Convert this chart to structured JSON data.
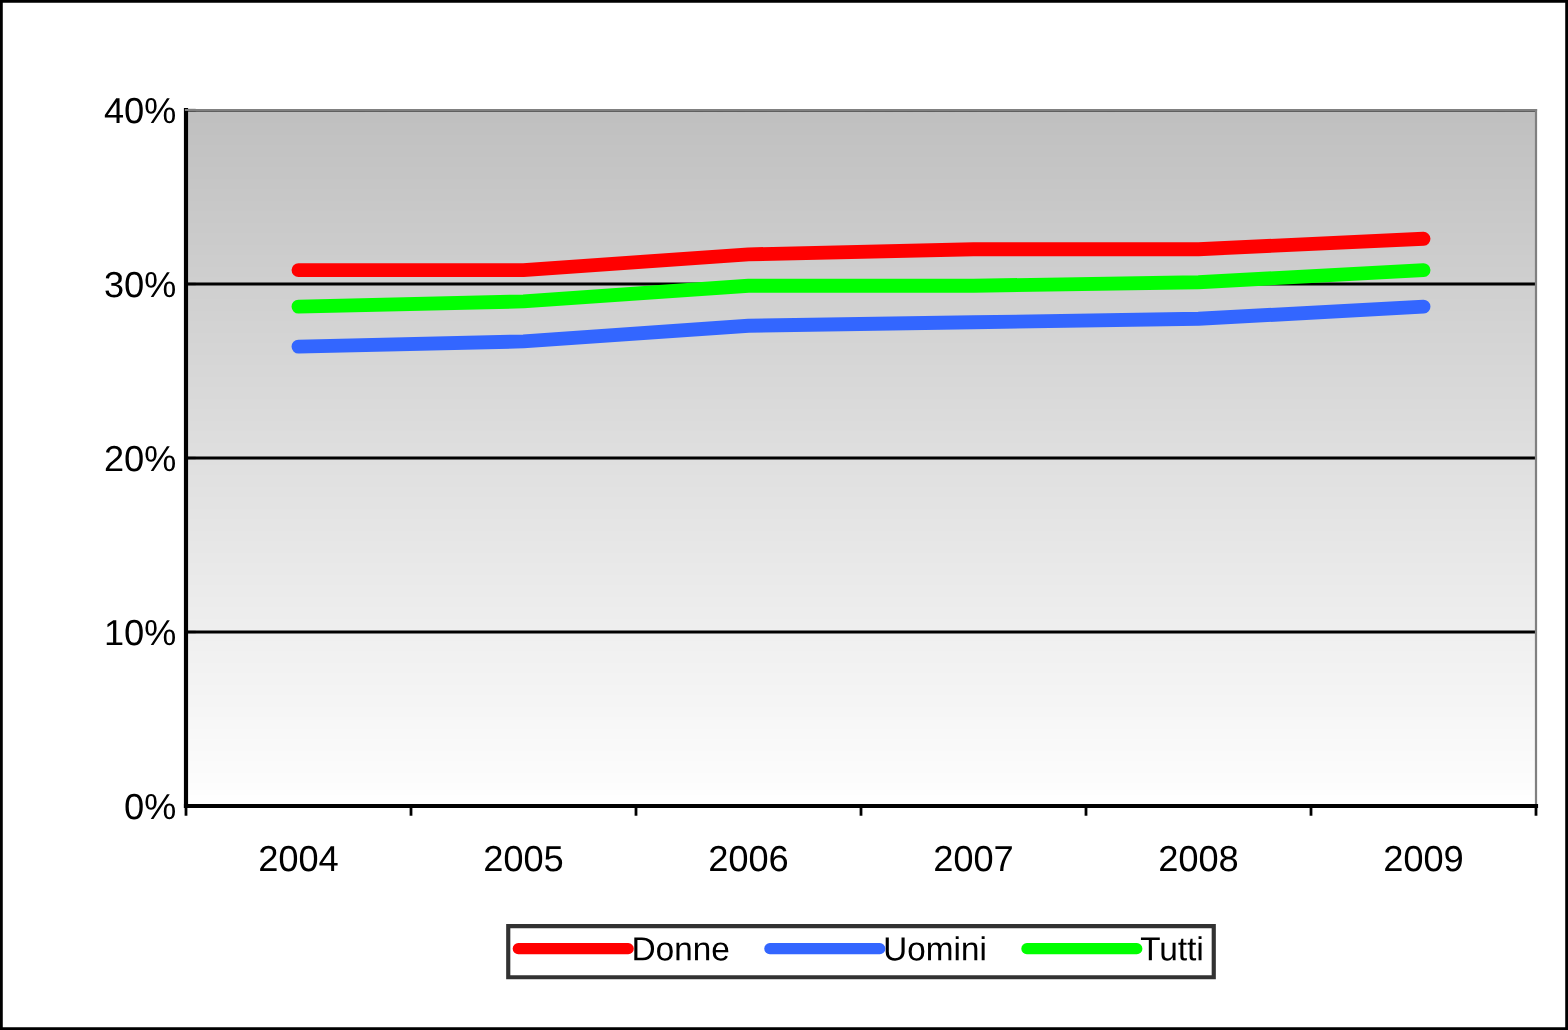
{
  "chart_data": {
    "type": "line",
    "categories": [
      "2004",
      "2005",
      "2006",
      "2007",
      "2008",
      "2009"
    ],
    "series": [
      {
        "name": "Donne",
        "color": "#ff0000",
        "values": [
          30.8,
          30.8,
          31.7,
          32.0,
          32.0,
          32.6
        ]
      },
      {
        "name": "Uomini",
        "color": "#3366ff",
        "values": [
          26.4,
          26.7,
          27.6,
          27.8,
          28.0,
          28.7
        ]
      },
      {
        "name": "Tutti",
        "color": "#00ff00",
        "values": [
          28.7,
          29.0,
          29.9,
          29.9,
          30.1,
          30.8
        ]
      }
    ],
    "ylim": [
      0,
      40
    ],
    "yticks": [
      {
        "value": 0,
        "label": "0%"
      },
      {
        "value": 10,
        "label": "10%"
      },
      {
        "value": 20,
        "label": "20%"
      },
      {
        "value": 30,
        "label": "30%"
      },
      {
        "value": 40,
        "label": "40%"
      }
    ],
    "grid": "y",
    "legend": "bottom",
    "marker": "none",
    "line_style": "solid"
  }
}
